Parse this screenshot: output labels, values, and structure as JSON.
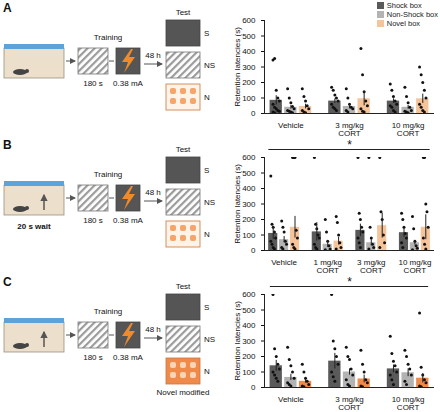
{
  "chart_data": [
    {
      "type": "bar",
      "title": "A",
      "y_label": "Retention latencies (s)",
      "ylim": [
        0,
        600
      ],
      "yticks": [
        0,
        100,
        200,
        300,
        400,
        500,
        600
      ],
      "legend": "top-right",
      "categories": [
        "Vehicle",
        "3 mg/kg CORT",
        "10 mg/kg CORT"
      ],
      "annotations": {
        "training": "Training",
        "duration": "180 s",
        "current": "0.38 mA",
        "delay": "48 h",
        "test": "Test",
        "boxes": [
          "S",
          "NS",
          "N"
        ]
      },
      "series": [
        {
          "name": "Shock box",
          "color": "#5a5a5a",
          "values": [
            85,
            80,
            80
          ],
          "errors": [
            30,
            15,
            15
          ],
          "points": [
            [
              345,
              355,
              150,
              100,
              80,
              60,
              40,
              30,
              20,
              15,
              10,
              5
            ],
            [
              170,
              150,
              120,
              100,
              80,
              60,
              40,
              30,
              20
            ],
            [
              190,
              150,
              110,
              80,
              60,
              50,
              40,
              20,
              10
            ]
          ]
        },
        {
          "name": "Non-Shock box",
          "color": "#b3b3b3",
          "values": [
            40,
            45,
            40
          ],
          "errors": [
            12,
            15,
            12
          ],
          "points": [
            [
              160,
              100,
              70,
              45,
              30,
              20,
              15,
              10,
              5
            ],
            [
              160,
              100,
              60,
              40,
              30,
              20,
              10
            ],
            [
              170,
              110,
              70,
              40,
              20,
              15,
              10,
              5
            ]
          ]
        },
        {
          "name": "Novel box",
          "color": "#f5c49a",
          "values": [
            45,
            95,
            95
          ],
          "errors": [
            15,
            45,
            30
          ],
          "points": [
            [
              160,
              110,
              80,
              50,
              30,
              20,
              10,
              5
            ],
            [
              420,
              250,
              140,
              80,
              50,
              30,
              15,
              10
            ],
            [
              300,
              250,
              200,
              150,
              100,
              60,
              40,
              20,
              10
            ]
          ]
        }
      ]
    },
    {
      "type": "bar",
      "title": "B",
      "y_label": "Retention latencies (s)",
      "ylim": [
        0,
        600
      ],
      "yticks": [
        0,
        100,
        200,
        300,
        400,
        500,
        600
      ],
      "categories": [
        "Vehicle",
        "1 mg/kg CORT",
        "3 mg/kg CORT",
        "10 mg/kg CORT"
      ],
      "annotations": {
        "wait": "20 s wait",
        "training": "Training",
        "duration": "180 s",
        "current": "0.38 mA",
        "delay": "48 h",
        "test": "Test",
        "boxes": [
          "S",
          "NS",
          "N"
        ],
        "significance": "*"
      },
      "series": [
        {
          "color": "#5a5a5a",
          "values": [
            110,
            120,
            130,
            115
          ],
          "errors": [
            40,
            60,
            40,
            30
          ],
          "points": [
            [
              480,
              170,
              150,
              120,
              80,
              60,
              40,
              20,
              10
            ],
            [
              600,
              170,
              140,
              100,
              80,
              40,
              20,
              10
            ],
            [
              600,
              240,
              200,
              150,
              120,
              80,
              50,
              20
            ],
            [
              240,
              200,
              150,
              110,
              80,
              50,
              20
            ]
          ]
        },
        {
          "color": "#b3b3b3",
          "values": [
            70,
            40,
            50,
            50
          ],
          "errors": [
            20,
            20,
            20,
            15
          ],
          "points": [
            [
              190,
              150,
              120,
              60,
              40,
              20,
              10
            ],
            [
              200,
              120,
              60,
              30,
              10,
              5
            ],
            [
              600,
              150,
              80,
              40,
              20,
              10
            ],
            [
              220,
              140,
              60,
              30,
              15,
              5
            ]
          ]
        },
        {
          "color": "#f5c49a",
          "values": [
            150,
            60,
            160,
            150
          ],
          "errors": [
            70,
            25,
            80,
            80
          ],
          "points": [
            [
              600,
              600,
              600,
              130,
              80,
              40,
              20,
              10
            ],
            [
              220,
              180,
              100,
              50,
              20,
              10
            ],
            [
              600,
              250,
              200,
              100,
              50,
              20
            ],
            [
              600,
              600,
              300,
              250,
              150,
              80,
              40,
              10
            ]
          ]
        }
      ]
    },
    {
      "type": "bar",
      "title": "C",
      "y_label": "Retention latencies (s)",
      "ylim": [
        0,
        600
      ],
      "yticks": [
        0,
        100,
        200,
        300,
        400,
        500,
        600
      ],
      "categories": [
        "Vehicle",
        "3 mg/kg CORT",
        "10 mg/kg CORT"
      ],
      "annotations": {
        "training": "Training",
        "duration": "180 s",
        "current": "0.38 mA",
        "delay": "48 h",
        "test": "Test",
        "boxes": [
          "S",
          "NS",
          "N"
        ],
        "novel_label": "Novel modified",
        "significance": "*"
      },
      "series": [
        {
          "color": "#5a5a5a",
          "values": [
            140,
            170,
            120
          ],
          "errors": [
            35,
            50,
            25
          ],
          "points": [
            [
              600,
              250,
              200,
              150,
              120,
              100,
              80,
              60,
              40
            ],
            [
              600,
              300,
              250,
              200,
              150,
              100,
              70,
              40
            ],
            [
              330,
              220,
              170,
              140,
              100,
              80,
              50,
              20
            ]
          ]
        },
        {
          "color": "#b3b3b3",
          "values": [
            65,
            100,
            95
          ],
          "errors": [
            20,
            20,
            25
          ],
          "points": [
            [
              260,
              180,
              140,
              100,
              60,
              30,
              20,
              10
            ],
            [
              260,
              200,
              180,
              120,
              80,
              50,
              20,
              10
            ],
            [
              240,
              200,
              150,
              120,
              80,
              40,
              20
            ]
          ]
        },
        {
          "color": "#f08a4b",
          "values": [
            40,
            55,
            60
          ],
          "errors": [
            12,
            25,
            30
          ],
          "points": [
            [
              150,
              100,
              60,
              40,
              20,
              10,
              5
            ],
            [
              240,
              150,
              100,
              50,
              30,
              10,
              5
            ],
            [
              480,
              130,
              80,
              50,
              30,
              10,
              5
            ]
          ]
        }
      ]
    }
  ]
}
